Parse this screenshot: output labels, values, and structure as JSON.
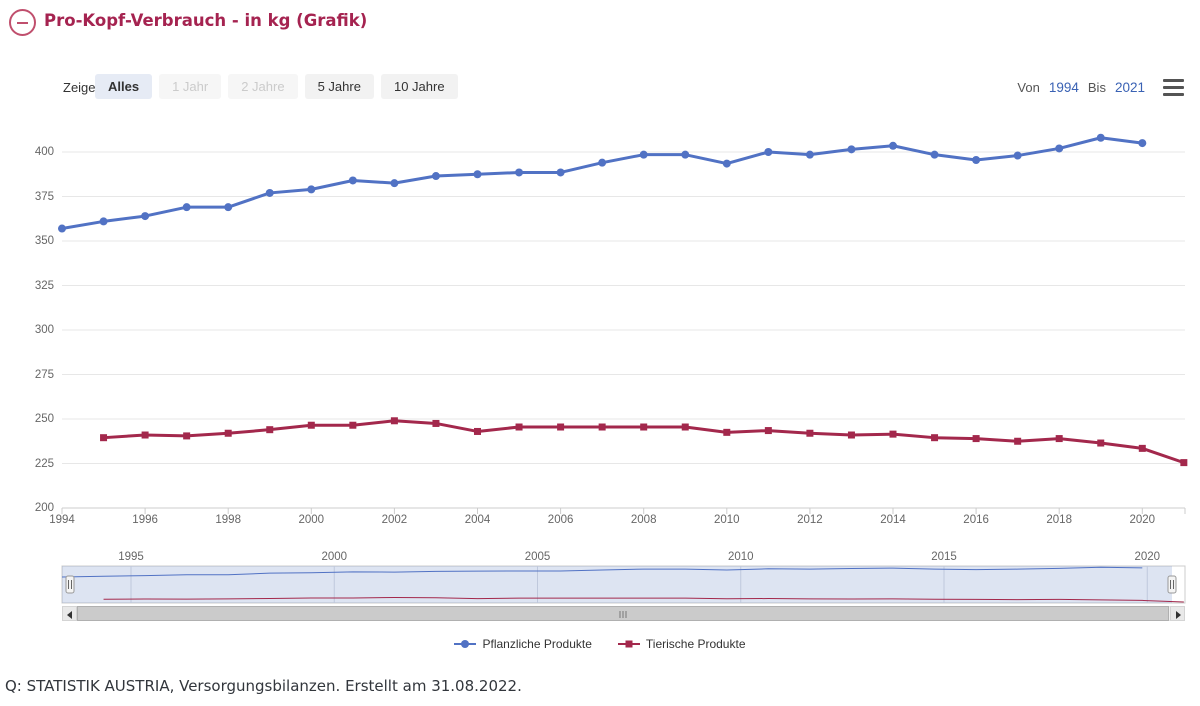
{
  "header": {
    "title": "Pro-Kopf-Verbrauch - in kg (Grafik)",
    "accent_color": "#a52350"
  },
  "range_selector": {
    "zeige_label": "Zeige",
    "buttons": [
      {
        "label": "Alles",
        "state": "selected"
      },
      {
        "label": "1 Jahr",
        "state": "disabled"
      },
      {
        "label": "2 Jahre",
        "state": "disabled"
      },
      {
        "label": "5 Jahre",
        "state": "normal"
      },
      {
        "label": "10 Jahre",
        "state": "normal"
      }
    ],
    "von_label": "Von",
    "von_value": "1994",
    "bis_label": "Bis",
    "bis_value": "2021",
    "menu_icon": "hamburger-menu-icon"
  },
  "chart_data": {
    "type": "line",
    "title": "Pro-Kopf-Verbrauch - in kg",
    "xlabel": "",
    "ylabel": "",
    "ylim": [
      200,
      410
    ],
    "yticks": [
      200,
      225,
      250,
      275,
      300,
      325,
      350,
      375,
      400
    ],
    "xticks": [
      1994,
      1996,
      1998,
      2000,
      2002,
      2004,
      2006,
      2008,
      2010,
      2012,
      2014,
      2016,
      2018,
      2020
    ],
    "grid": true,
    "legend_position": "bottom",
    "series": [
      {
        "name": "Pflanzliche Produkte",
        "color": "#5172c4",
        "marker": "circle",
        "start_year": 1994,
        "values": [
          357,
          361,
          364,
          369,
          369,
          377,
          379,
          384,
          382.5,
          386.5,
          387.5,
          388.5,
          388.5,
          394,
          398.5,
          398.5,
          393.5,
          400,
          398.5,
          401.5,
          403.5,
          398.5,
          395.5,
          398,
          402,
          408,
          405
        ]
      },
      {
        "name": "Tierische Produkte",
        "color": "#a3284c",
        "marker": "square",
        "start_year": 1995,
        "values": [
          239.5,
          241,
          240.5,
          242,
          244,
          246.5,
          246.5,
          249,
          247.5,
          243,
          245.5,
          245.5,
          245.5,
          245.5,
          245.5,
          242.5,
          243.5,
          242,
          241,
          241.5,
          239.5,
          239,
          237.5,
          239,
          236.5,
          233.5,
          225.5
        ]
      }
    ]
  },
  "navigator": {
    "years": [
      1995,
      2000,
      2005,
      2010,
      2015,
      2020
    ],
    "mask_color": "rgba(102,133,194,0.22)"
  },
  "scrollbar": {
    "left_arrow_icon": "triangle-left-icon",
    "right_arrow_icon": "triangle-right-icon",
    "grip_icon": "grip-lines-icon"
  },
  "footer": {
    "source": "Q: STATISTIK AUSTRIA, Versorgungsbilanzen. Erstellt am 31.08.2022."
  }
}
